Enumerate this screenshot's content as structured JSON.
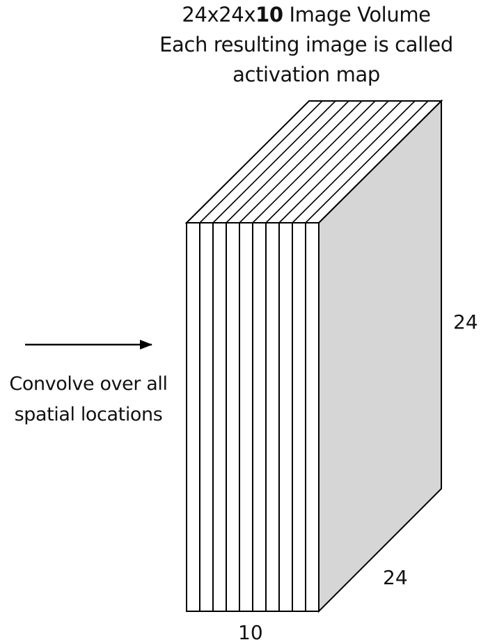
{
  "title": {
    "line1_prefix": "24x24x",
    "line1_bold": "10",
    "line1_suffix": " Image Volume",
    "line2": "Each resulting image is called",
    "line3": "activation map"
  },
  "arrow_caption": {
    "line1": "Convolve over all",
    "line2": "spatial locations"
  },
  "dimensions": {
    "height": "24",
    "depth": "24",
    "width": "10"
  },
  "volume": {
    "slice_count": 10,
    "side_face_color": "#d6d6d6",
    "edge_color": "#000000"
  }
}
